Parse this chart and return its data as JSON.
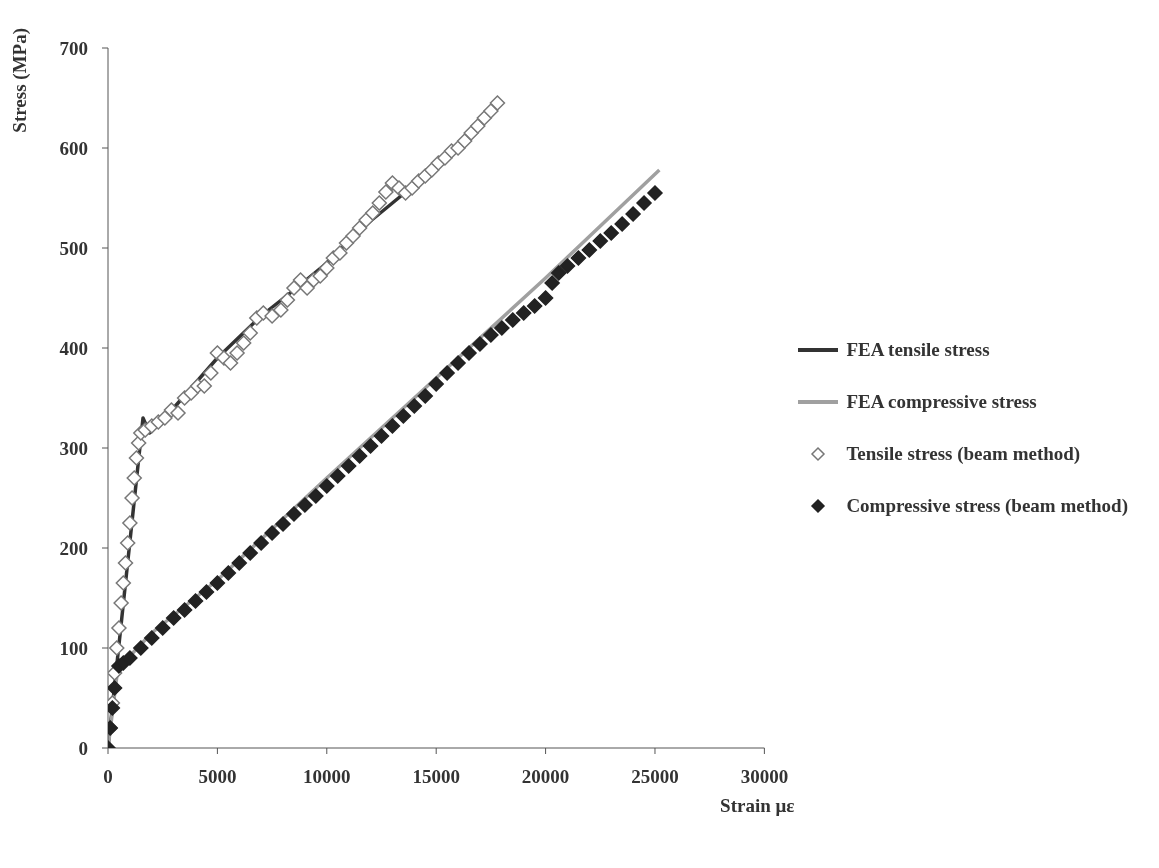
{
  "chart_data": {
    "type": "line",
    "xlabel": "Strain με",
    "ylabel": "Stress (MPa)",
    "xlim": [
      0,
      30000
    ],
    "xticks": [
      0,
      5000,
      10000,
      15000,
      20000,
      25000,
      30000
    ],
    "ylim": [
      0,
      700
    ],
    "yticks": [
      0,
      100,
      200,
      300,
      400,
      500,
      600,
      700
    ],
    "grid": false,
    "legend": "right",
    "series": [
      {
        "name": "FEA tensile stress",
        "color": "#333333",
        "marker": "none",
        "x": [
          0,
          1600,
          1900,
          3000,
          5000,
          7000,
          8500,
          10000,
          11500,
          13000,
          14000,
          15500,
          17700
        ],
        "values": [
          0,
          330,
          315,
          340,
          390,
          432,
          458,
          485,
          518,
          545,
          563,
          590,
          642
        ]
      },
      {
        "name": "FEA compressive stress",
        "color": "#a0a0a0",
        "marker": "none",
        "x": [
          0,
          450,
          1000,
          2000,
          5000,
          10000,
          15000,
          20000,
          25200
        ],
        "values": [
          0,
          80,
          92,
          115,
          168,
          270,
          370,
          470,
          578
        ]
      },
      {
        "name": "Tensile stress (beam method)",
        "type": "scatter",
        "color": "#777777",
        "marker": "diamond",
        "x": [
          100,
          200,
          300,
          400,
          500,
          600,
          700,
          800,
          900,
          1000,
          1100,
          1200,
          1300,
          1400,
          1500,
          1700,
          2000,
          2300,
          2600,
          2900,
          3200,
          3500,
          3800,
          4100,
          4400,
          4700,
          5000,
          5300,
          5600,
          5900,
          6200,
          6500,
          6800,
          7100,
          7500,
          7900,
          8200,
          8500,
          8800,
          9100,
          9400,
          9700,
          10000,
          10300,
          10600,
          10900,
          11200,
          11500,
          11800,
          12100,
          12400,
          12700,
          13000,
          13300,
          13600,
          13900,
          14200,
          14500,
          14800,
          15100,
          15400,
          15700,
          16000,
          16300,
          16600,
          16900,
          17200,
          17500,
          17800
        ],
        "values": [
          20,
          45,
          75,
          100,
          120,
          145,
          165,
          185,
          205,
          225,
          250,
          270,
          290,
          305,
          315,
          318,
          322,
          326,
          330,
          338,
          335,
          350,
          355,
          362,
          362,
          375,
          395,
          390,
          385,
          395,
          405,
          415,
          430,
          435,
          432,
          438,
          448,
          460,
          468,
          460,
          468,
          472,
          480,
          490,
          495,
          505,
          512,
          520,
          528,
          535,
          545,
          556,
          565,
          560,
          555,
          560,
          567,
          572,
          578,
          585,
          590,
          597,
          600,
          607,
          615,
          622,
          630,
          637,
          645
        ]
      },
      {
        "name": "Compressive stress (beam method)",
        "type": "scatter",
        "color": "#222222",
        "marker": "diamond",
        "x": [
          0,
          100,
          200,
          300,
          500,
          700,
          1000,
          1500,
          2000,
          2500,
          3000,
          3500,
          4000,
          4500,
          5000,
          5500,
          6000,
          6500,
          7000,
          7500,
          8000,
          8500,
          9000,
          9500,
          10000,
          10500,
          11000,
          11500,
          12000,
          12500,
          13000,
          13500,
          14000,
          14500,
          15000,
          15500,
          16000,
          16500,
          17000,
          17500,
          18000,
          18500,
          19000,
          19500,
          20000,
          20300,
          20600,
          21000,
          21500,
          22000,
          22500,
          23000,
          23500,
          24000,
          24500,
          25000
        ],
        "values": [
          0,
          20,
          40,
          60,
          82,
          85,
          90,
          100,
          110,
          120,
          130,
          138,
          147,
          156,
          165,
          175,
          185,
          195,
          205,
          215,
          224,
          234,
          243,
          252,
          262,
          272,
          282,
          292,
          302,
          312,
          322,
          332,
          342,
          352,
          364,
          375,
          385,
          395,
          404,
          413,
          420,
          428,
          435,
          442,
          450,
          465,
          475,
          482,
          490,
          498,
          507,
          515,
          524,
          534,
          545,
          555
        ]
      }
    ]
  }
}
